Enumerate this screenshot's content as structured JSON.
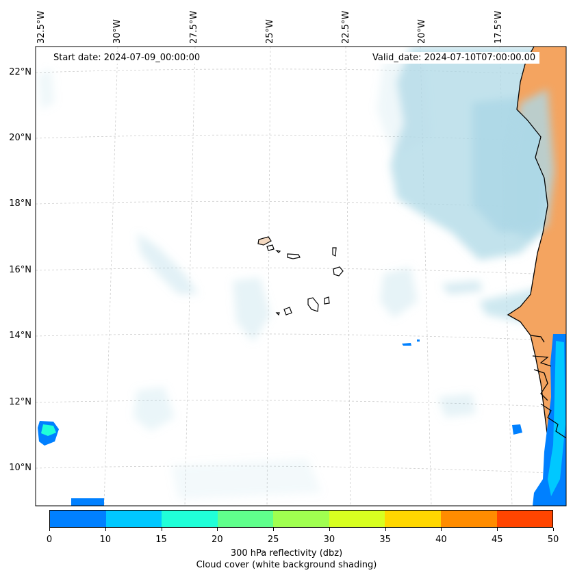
{
  "map": {
    "start_date": "Start date: 2024-07-09_00:00:00",
    "valid_date": "Valid_date: 2024-07-10T07:00:00.00",
    "lon_labels": [
      "32.5°W",
      "30°W",
      "27.5°W",
      "25°W",
      "22.5°W",
      "20°W",
      "17.5°W"
    ],
    "lat_labels": [
      "22°N",
      "20°N",
      "18°N",
      "16°N",
      "14°N",
      "12°N",
      "10°N"
    ],
    "land_color": "#f4a460",
    "cloud_color": "#add8e6",
    "coastline_color": "#000000"
  },
  "colorbar": {
    "ticks": [
      "0",
      "10",
      "15",
      "20",
      "25",
      "30",
      "35",
      "40",
      "45",
      "50"
    ],
    "colors": [
      "#0080ff",
      "#00c8ff",
      "#20ffd8",
      "#60ff8c",
      "#a0ff50",
      "#d8ff20",
      "#ffd700",
      "#ff8c00",
      "#ff4500"
    ],
    "label_line1": "300 hPa reflectivity (dbz)",
    "label_line2": "Cloud cover (white background shading)"
  }
}
